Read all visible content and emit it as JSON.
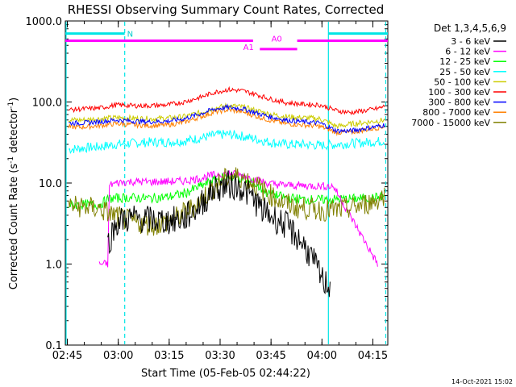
{
  "chart_data": {
    "type": "line",
    "title": "RHESSI Observing Summary Count Rates, Corrected",
    "xlabel": "Start Time (05-Feb-05 02:44:22)",
    "ylabel_main": "Corrected Count Rate (s",
    "ylabel_sup1": "-1",
    "ylabel_mid": " detector",
    "ylabel_sup2": "-1",
    "ylabel_end": ")",
    "x_unit": "minutes after 02:44:22",
    "xlim": [
      0,
      95
    ],
    "ylim": [
      0.1,
      1000
    ],
    "y_scale": "log",
    "x_ticks": [
      {
        "label": "02:45",
        "value": 0.6
      },
      {
        "label": "03:00",
        "value": 15.6
      },
      {
        "label": "03:15",
        "value": 30.6
      },
      {
        "label": "03:30",
        "value": 45.6
      },
      {
        "label": "03:45",
        "value": 60.6
      },
      {
        "label": "04:00",
        "value": 75.6
      },
      {
        "label": "04:15",
        "value": 90.6
      }
    ],
    "y_ticks": [
      {
        "label": "0.1",
        "value": 0.1
      },
      {
        "label": "1.0",
        "value": 1
      },
      {
        "label": "10.0",
        "value": 10
      },
      {
        "label": "100.0",
        "value": 100
      },
      {
        "label": "1000.0",
        "value": 1000
      }
    ],
    "legend_title": "Det 1,3,4,5,6,9",
    "legend_position": "right",
    "series": [
      {
        "name": "3 - 6 keV",
        "color": "#000000",
        "points": [
          [
            12.5,
            1.8
          ],
          [
            14,
            2.5
          ],
          [
            15,
            3.2
          ],
          [
            17,
            3.5
          ],
          [
            20,
            3.7
          ],
          [
            25,
            3.5
          ],
          [
            30,
            3.4
          ],
          [
            35,
            3.6
          ],
          [
            40,
            5.5
          ],
          [
            44,
            8.5
          ],
          [
            48,
            9.5
          ],
          [
            52,
            8.8
          ],
          [
            56,
            6.0
          ],
          [
            58,
            4.6
          ],
          [
            62,
            3.6
          ],
          [
            65,
            3.0
          ],
          [
            68,
            2.2
          ],
          [
            70,
            1.8
          ],
          [
            72,
            1.3
          ],
          [
            74,
            0.9
          ],
          [
            76,
            0.6
          ],
          [
            78,
            0.55
          ]
        ]
      },
      {
        "name": "6 - 12 keV",
        "color": "#ff00ff",
        "points": [
          [
            10,
            1.0
          ],
          [
            12.5,
            1.0
          ],
          [
            13,
            9.5
          ],
          [
            16,
            10.2
          ],
          [
            20,
            10.4
          ],
          [
            25,
            10.3
          ],
          [
            30,
            10.4
          ],
          [
            35,
            10.6
          ],
          [
            40,
            11.5
          ],
          [
            44,
            12.6
          ],
          [
            48,
            13.2
          ],
          [
            52,
            12.4
          ],
          [
            56,
            11.0
          ],
          [
            60,
            9.8
          ],
          [
            65,
            9.4
          ],
          [
            70,
            9.3
          ],
          [
            75,
            9.2
          ],
          [
            79,
            9.1
          ],
          [
            92,
            1.0
          ]
        ]
      },
      {
        "name": "12 - 25 keV",
        "color": "#00ff00",
        "points": [
          [
            1,
            5.3
          ],
          [
            5,
            5.4
          ],
          [
            10,
            5.4
          ],
          [
            13,
            6.4
          ],
          [
            18,
            6.6
          ],
          [
            25,
            6.5
          ],
          [
            30,
            6.7
          ],
          [
            35,
            7.4
          ],
          [
            40,
            9.2
          ],
          [
            44,
            11.0
          ],
          [
            48,
            12.0
          ],
          [
            52,
            11.5
          ],
          [
            56,
            9.5
          ],
          [
            60,
            7.3
          ],
          [
            65,
            6.6
          ],
          [
            70,
            6.3
          ],
          [
            75,
            6.2
          ],
          [
            80,
            6.3
          ],
          [
            85,
            6.4
          ],
          [
            90,
            6.5
          ],
          [
            94,
            6.9
          ]
        ]
      },
      {
        "name": "25 - 50 keV",
        "color": "#00ffff",
        "points": [
          [
            1,
            26
          ],
          [
            5,
            27
          ],
          [
            10,
            28
          ],
          [
            15,
            30
          ],
          [
            20,
            31
          ],
          [
            25,
            32
          ],
          [
            30,
            32
          ],
          [
            35,
            33
          ],
          [
            40,
            36
          ],
          [
            44,
            39
          ],
          [
            48,
            40
          ],
          [
            52,
            38
          ],
          [
            56,
            35
          ],
          [
            60,
            32
          ],
          [
            65,
            30
          ],
          [
            70,
            30
          ],
          [
            75,
            29
          ],
          [
            80,
            30
          ],
          [
            85,
            31
          ],
          [
            90,
            32
          ],
          [
            94,
            33
          ]
        ]
      },
      {
        "name": "50 - 100 keV",
        "color": "#cccc00",
        "points": [
          [
            1,
            60
          ],
          [
            5,
            60
          ],
          [
            10,
            62
          ],
          [
            15,
            64
          ],
          [
            20,
            63
          ],
          [
            25,
            62
          ],
          [
            30,
            63
          ],
          [
            35,
            66
          ],
          [
            40,
            74
          ],
          [
            44,
            84
          ],
          [
            48,
            90
          ],
          [
            52,
            87
          ],
          [
            56,
            79
          ],
          [
            60,
            71
          ],
          [
            65,
            66
          ],
          [
            70,
            64
          ],
          [
            75,
            62
          ],
          [
            80,
            50
          ],
          [
            85,
            54
          ],
          [
            90,
            57
          ],
          [
            94,
            60
          ]
        ]
      },
      {
        "name": "100 - 300 keV",
        "color": "#ff0000",
        "points": [
          [
            1,
            80
          ],
          [
            5,
            82
          ],
          [
            10,
            84
          ],
          [
            15,
            92
          ],
          [
            20,
            90
          ],
          [
            25,
            90
          ],
          [
            30,
            92
          ],
          [
            35,
            100
          ],
          [
            40,
            115
          ],
          [
            44,
            132
          ],
          [
            48,
            142
          ],
          [
            52,
            138
          ],
          [
            56,
            125
          ],
          [
            60,
            110
          ],
          [
            65,
            98
          ],
          [
            70,
            94
          ],
          [
            75,
            92
          ],
          [
            80,
            78
          ],
          [
            84,
            74
          ],
          [
            88,
            78
          ],
          [
            92,
            83
          ],
          [
            94,
            88
          ]
        ]
      },
      {
        "name": "300 - 800 keV",
        "color": "#0000ff",
        "points": [
          [
            1,
            55
          ],
          [
            5,
            55
          ],
          [
            10,
            57
          ],
          [
            15,
            60
          ],
          [
            20,
            58
          ],
          [
            25,
            57
          ],
          [
            30,
            58
          ],
          [
            35,
            62
          ],
          [
            40,
            72
          ],
          [
            44,
            82
          ],
          [
            48,
            86
          ],
          [
            52,
            83
          ],
          [
            56,
            74
          ],
          [
            60,
            66
          ],
          [
            65,
            60
          ],
          [
            70,
            57
          ],
          [
            75,
            55
          ],
          [
            80,
            44
          ],
          [
            84,
            44
          ],
          [
            88,
            47
          ],
          [
            92,
            50
          ],
          [
            94,
            52
          ]
        ]
      },
      {
        "name": "800 - 7000 keV",
        "color": "#ff8000",
        "points": [
          [
            1,
            49
          ],
          [
            5,
            49
          ],
          [
            10,
            51
          ],
          [
            15,
            54
          ],
          [
            20,
            52
          ],
          [
            25,
            51
          ],
          [
            30,
            52
          ],
          [
            35,
            56
          ],
          [
            40,
            66
          ],
          [
            44,
            75
          ],
          [
            48,
            80
          ],
          [
            52,
            76
          ],
          [
            56,
            67
          ],
          [
            60,
            60
          ],
          [
            65,
            54
          ],
          [
            70,
            52
          ],
          [
            75,
            50
          ],
          [
            80,
            42
          ],
          [
            84,
            42
          ],
          [
            88,
            45
          ],
          [
            92,
            48
          ],
          [
            94,
            50
          ]
        ]
      },
      {
        "name": "7000 - 15000 keV",
        "color": "#808000",
        "points": [
          [
            1,
            5.2
          ],
          [
            5,
            5.1
          ],
          [
            10,
            4.8
          ],
          [
            13,
            4.2
          ],
          [
            18,
            3.5
          ],
          [
            22,
            3.2
          ],
          [
            26,
            3.0
          ],
          [
            30,
            3.3
          ],
          [
            34,
            4.0
          ],
          [
            38,
            5.2
          ],
          [
            42,
            7.5
          ],
          [
            46,
            10.5
          ],
          [
            49,
            12.2
          ],
          [
            52,
            11.7
          ],
          [
            56,
            9.5
          ],
          [
            60,
            7.3
          ],
          [
            64,
            5.8
          ],
          [
            68,
            5.0
          ],
          [
            72,
            4.8
          ],
          [
            76,
            4.6
          ],
          [
            80,
            4.6
          ],
          [
            84,
            4.9
          ],
          [
            88,
            5.4
          ],
          [
            92,
            6.2
          ],
          [
            94,
            7.2
          ]
        ]
      }
    ],
    "attenuator_states": [
      {
        "label": "A0",
        "level": 570,
        "segments": [
          [
            0,
            55.3
          ],
          [
            68.3,
            95
          ]
        ]
      },
      {
        "label": "A1",
        "level": 450,
        "segments": [
          [
            57.3,
            68.3
          ]
        ]
      }
    ],
    "night_label": "N",
    "night_level": 700,
    "night_intervals": [
      [
        0,
        17.5
      ],
      [
        77.5,
        95
      ]
    ],
    "night_markers_solid": [
      0,
      77.5
    ],
    "night_markers_dashed": [
      17.5,
      94.4
    ]
  },
  "footer_date": "14-Oct-2021 15:02"
}
